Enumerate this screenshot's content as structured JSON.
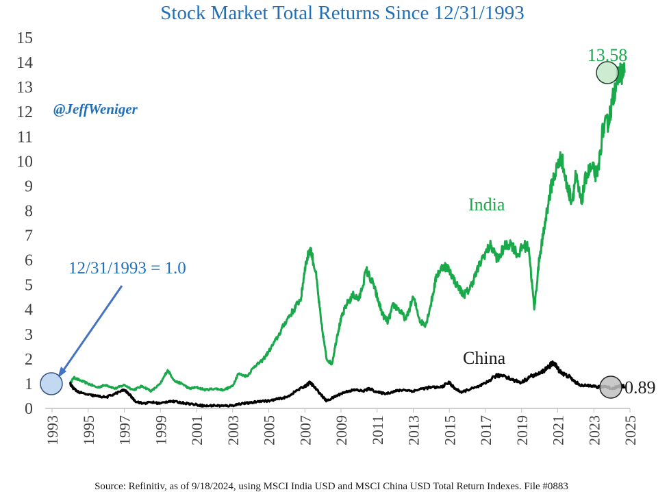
{
  "chart_data": {
    "type": "line",
    "title": "Stock Market Total Returns Since 12/31/1993",
    "xlabel": "",
    "ylabel": "",
    "xlim": [
      1993,
      2025
    ],
    "ylim": [
      0,
      15
    ],
    "x_ticks": [
      "1993",
      "1995",
      "1997",
      "1999",
      "2001",
      "2003",
      "2005",
      "2007",
      "2009",
      "2011",
      "2013",
      "2015",
      "2017",
      "2019",
      "2021",
      "2023",
      "2025"
    ],
    "y_ticks": [
      "0",
      "1",
      "2",
      "3",
      "4",
      "5",
      "6",
      "7",
      "8",
      "9",
      "10",
      "11",
      "12",
      "13",
      "14",
      "15"
    ],
    "series": [
      {
        "name": "India",
        "color": "#19a84a",
        "x": [
          1994.0,
          1994.2,
          1994.5,
          1995.0,
          1995.5,
          1996.0,
          1996.5,
          1997.0,
          1997.5,
          1998.0,
          1998.5,
          1999.0,
          1999.4,
          1999.8,
          2000.2,
          2000.6,
          2001.0,
          2001.5,
          2002.0,
          2002.5,
          2003.0,
          2003.3,
          2003.8,
          2004.2,
          2004.6,
          2005.0,
          2005.5,
          2006.0,
          2006.4,
          2006.8,
          2007.0,
          2007.3,
          2007.6,
          2007.9,
          2008.2,
          2008.5,
          2008.8,
          2009.0,
          2009.3,
          2009.7,
          2010.0,
          2010.4,
          2010.8,
          2011.0,
          2011.3,
          2011.6,
          2011.9,
          2012.2,
          2012.6,
          2013.0,
          2013.4,
          2013.7,
          2014.0,
          2014.3,
          2014.7,
          2015.0,
          2015.4,
          2015.8,
          2016.1,
          2016.5,
          2016.9,
          2017.3,
          2017.7,
          2018.0,
          2018.4,
          2018.8,
          2019.1,
          2019.4,
          2019.7,
          2020.0,
          2020.2,
          2020.4,
          2020.7,
          2021.0,
          2021.2,
          2021.5,
          2021.8,
          2022.0,
          2022.3,
          2022.6,
          2022.9,
          2023.2,
          2023.5,
          2023.8,
          2024.0,
          2024.2,
          2024.4,
          2024.7
        ],
        "values": [
          1.0,
          1.25,
          1.15,
          1.0,
          0.85,
          0.95,
          0.8,
          0.95,
          0.75,
          0.9,
          0.7,
          1.0,
          1.55,
          1.1,
          1.0,
          0.8,
          0.85,
          0.75,
          0.8,
          0.75,
          0.9,
          1.4,
          1.3,
          1.7,
          1.9,
          2.3,
          2.9,
          3.6,
          4.0,
          4.5,
          5.7,
          6.5,
          5.5,
          3.5,
          2.0,
          1.8,
          3.0,
          3.6,
          4.2,
          4.6,
          4.4,
          5.6,
          5.0,
          4.5,
          3.8,
          3.5,
          4.2,
          4.0,
          3.6,
          4.5,
          3.5,
          3.4,
          4.3,
          5.4,
          5.8,
          5.6,
          5.0,
          4.6,
          4.8,
          5.5,
          6.2,
          6.6,
          6.0,
          6.5,
          6.7,
          6.2,
          6.6,
          6.5,
          4.0,
          6.2,
          7.0,
          8.0,
          9.2,
          9.8,
          10.2,
          9.0,
          8.4,
          9.4,
          8.3,
          9.5,
          9.7,
          9.4,
          11.3,
          11.6,
          12.3,
          13.1,
          13.58,
          13.58
        ]
      },
      {
        "name": "China",
        "color": "#000000",
        "x": [
          1994.0,
          1994.2,
          1994.5,
          1995.0,
          1995.5,
          1996.0,
          1996.5,
          1997.0,
          1997.3,
          1997.6,
          1998.0,
          1998.5,
          1999.0,
          1999.5,
          2000.0,
          2000.5,
          2001.0,
          2001.5,
          2002.0,
          2002.5,
          2003.0,
          2003.5,
          2004.0,
          2004.5,
          2005.0,
          2005.5,
          2006.0,
          2006.5,
          2007.0,
          2007.3,
          2007.6,
          2007.9,
          2008.2,
          2008.6,
          2009.0,
          2009.4,
          2009.8,
          2010.2,
          2010.6,
          2011.0,
          2011.5,
          2012.0,
          2012.5,
          2013.0,
          2013.5,
          2014.0,
          2014.5,
          2015.0,
          2015.3,
          2015.7,
          2016.0,
          2016.5,
          2017.0,
          2017.5,
          2018.0,
          2018.5,
          2019.0,
          2019.5,
          2020.0,
          2020.5,
          2020.8,
          2021.0,
          2021.3,
          2021.6,
          2022.0,
          2022.4,
          2022.8,
          2023.2,
          2023.6,
          2024.0,
          2024.4,
          2024.7
        ],
        "values": [
          1.0,
          0.8,
          0.65,
          0.55,
          0.5,
          0.45,
          0.6,
          0.75,
          0.55,
          0.3,
          0.2,
          0.25,
          0.2,
          0.3,
          0.25,
          0.2,
          0.15,
          0.1,
          0.12,
          0.1,
          0.12,
          0.2,
          0.22,
          0.3,
          0.3,
          0.38,
          0.45,
          0.7,
          0.9,
          1.05,
          0.8,
          0.55,
          0.3,
          0.45,
          0.6,
          0.7,
          0.75,
          0.7,
          0.8,
          0.65,
          0.6,
          0.7,
          0.75,
          0.7,
          0.8,
          0.85,
          0.85,
          1.05,
          0.8,
          0.65,
          0.75,
          0.85,
          1.0,
          1.3,
          1.35,
          1.15,
          1.05,
          1.3,
          1.4,
          1.7,
          1.85,
          1.6,
          1.4,
          1.3,
          1.05,
          0.9,
          0.95,
          0.85,
          0.9,
          0.8,
          0.9,
          0.89
        ]
      }
    ],
    "annotations": {
      "handle": "@JeffWeniger",
      "baseline": "12/31/1993 = 1.0",
      "india_label": "India",
      "china_label": "China",
      "india_end": "13.58",
      "china_end": "0.89",
      "source": "Source: Refinitiv, as of 9/18/2024, using MSCI India USD and MSCI China USD Total Return Indexes. File #0883"
    },
    "colors": {
      "title": "#1f6fb8",
      "india": "#19a84a",
      "china": "#000000",
      "annotation": "#1f6fb8",
      "india_marker": "#bfe6c6",
      "china_marker": "#bfbfbf",
      "start_marker": "#b7d2ee"
    },
    "grid": false,
    "legend": "none"
  }
}
